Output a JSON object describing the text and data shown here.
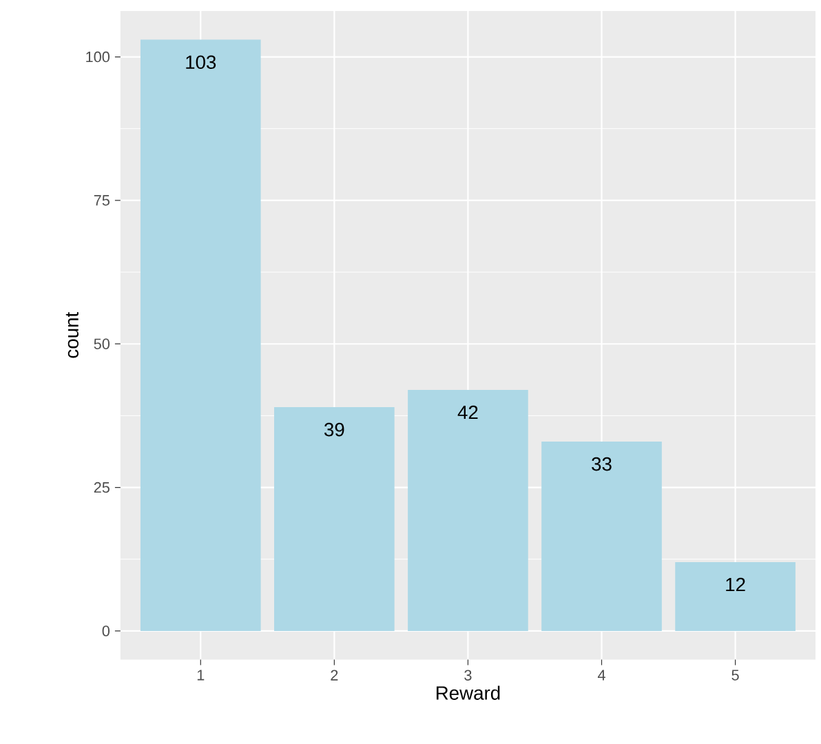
{
  "chart_data": {
    "type": "bar",
    "xlabel": "Reward",
    "ylabel": "count",
    "categories": [
      "1",
      "2",
      "3",
      "4",
      "5"
    ],
    "values": [
      103,
      39,
      42,
      33,
      12
    ],
    "color": "#add8e6",
    "ylim": [
      -5,
      108
    ],
    "yticks": [
      0,
      25,
      50,
      75,
      100
    ],
    "grid": true,
    "data_labels": true
  }
}
